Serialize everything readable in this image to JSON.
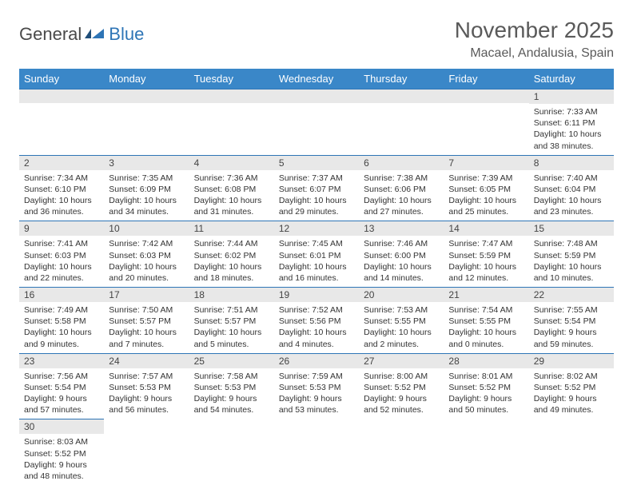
{
  "logo": {
    "general": "General",
    "blue": "Blue"
  },
  "title": "November 2025",
  "location": "Macael, Andalusia, Spain",
  "colors": {
    "header_bg": "#3a87c8",
    "header_text": "#ffffff",
    "daynum_bg": "#e8e8e8",
    "border_top": "#2e75b6",
    "text": "#333333",
    "title_color": "#5a5a5a",
    "logo_blue": "#2e75b6",
    "logo_gray": "#4a4a4a"
  },
  "weekdays": [
    "Sunday",
    "Monday",
    "Tuesday",
    "Wednesday",
    "Thursday",
    "Friday",
    "Saturday"
  ],
  "weeks": [
    [
      {
        "n": null
      },
      {
        "n": null
      },
      {
        "n": null
      },
      {
        "n": null
      },
      {
        "n": null
      },
      {
        "n": null
      },
      {
        "n": "1",
        "sr": "Sunrise: 7:33 AM",
        "ss": "Sunset: 6:11 PM",
        "dl": "Daylight: 10 hours and 38 minutes."
      }
    ],
    [
      {
        "n": "2",
        "sr": "Sunrise: 7:34 AM",
        "ss": "Sunset: 6:10 PM",
        "dl": "Daylight: 10 hours and 36 minutes."
      },
      {
        "n": "3",
        "sr": "Sunrise: 7:35 AM",
        "ss": "Sunset: 6:09 PM",
        "dl": "Daylight: 10 hours and 34 minutes."
      },
      {
        "n": "4",
        "sr": "Sunrise: 7:36 AM",
        "ss": "Sunset: 6:08 PM",
        "dl": "Daylight: 10 hours and 31 minutes."
      },
      {
        "n": "5",
        "sr": "Sunrise: 7:37 AM",
        "ss": "Sunset: 6:07 PM",
        "dl": "Daylight: 10 hours and 29 minutes."
      },
      {
        "n": "6",
        "sr": "Sunrise: 7:38 AM",
        "ss": "Sunset: 6:06 PM",
        "dl": "Daylight: 10 hours and 27 minutes."
      },
      {
        "n": "7",
        "sr": "Sunrise: 7:39 AM",
        "ss": "Sunset: 6:05 PM",
        "dl": "Daylight: 10 hours and 25 minutes."
      },
      {
        "n": "8",
        "sr": "Sunrise: 7:40 AM",
        "ss": "Sunset: 6:04 PM",
        "dl": "Daylight: 10 hours and 23 minutes."
      }
    ],
    [
      {
        "n": "9",
        "sr": "Sunrise: 7:41 AM",
        "ss": "Sunset: 6:03 PM",
        "dl": "Daylight: 10 hours and 22 minutes."
      },
      {
        "n": "10",
        "sr": "Sunrise: 7:42 AM",
        "ss": "Sunset: 6:03 PM",
        "dl": "Daylight: 10 hours and 20 minutes."
      },
      {
        "n": "11",
        "sr": "Sunrise: 7:44 AM",
        "ss": "Sunset: 6:02 PM",
        "dl": "Daylight: 10 hours and 18 minutes."
      },
      {
        "n": "12",
        "sr": "Sunrise: 7:45 AM",
        "ss": "Sunset: 6:01 PM",
        "dl": "Daylight: 10 hours and 16 minutes."
      },
      {
        "n": "13",
        "sr": "Sunrise: 7:46 AM",
        "ss": "Sunset: 6:00 PM",
        "dl": "Daylight: 10 hours and 14 minutes."
      },
      {
        "n": "14",
        "sr": "Sunrise: 7:47 AM",
        "ss": "Sunset: 5:59 PM",
        "dl": "Daylight: 10 hours and 12 minutes."
      },
      {
        "n": "15",
        "sr": "Sunrise: 7:48 AM",
        "ss": "Sunset: 5:59 PM",
        "dl": "Daylight: 10 hours and 10 minutes."
      }
    ],
    [
      {
        "n": "16",
        "sr": "Sunrise: 7:49 AM",
        "ss": "Sunset: 5:58 PM",
        "dl": "Daylight: 10 hours and 9 minutes."
      },
      {
        "n": "17",
        "sr": "Sunrise: 7:50 AM",
        "ss": "Sunset: 5:57 PM",
        "dl": "Daylight: 10 hours and 7 minutes."
      },
      {
        "n": "18",
        "sr": "Sunrise: 7:51 AM",
        "ss": "Sunset: 5:57 PM",
        "dl": "Daylight: 10 hours and 5 minutes."
      },
      {
        "n": "19",
        "sr": "Sunrise: 7:52 AM",
        "ss": "Sunset: 5:56 PM",
        "dl": "Daylight: 10 hours and 4 minutes."
      },
      {
        "n": "20",
        "sr": "Sunrise: 7:53 AM",
        "ss": "Sunset: 5:55 PM",
        "dl": "Daylight: 10 hours and 2 minutes."
      },
      {
        "n": "21",
        "sr": "Sunrise: 7:54 AM",
        "ss": "Sunset: 5:55 PM",
        "dl": "Daylight: 10 hours and 0 minutes."
      },
      {
        "n": "22",
        "sr": "Sunrise: 7:55 AM",
        "ss": "Sunset: 5:54 PM",
        "dl": "Daylight: 9 hours and 59 minutes."
      }
    ],
    [
      {
        "n": "23",
        "sr": "Sunrise: 7:56 AM",
        "ss": "Sunset: 5:54 PM",
        "dl": "Daylight: 9 hours and 57 minutes."
      },
      {
        "n": "24",
        "sr": "Sunrise: 7:57 AM",
        "ss": "Sunset: 5:53 PM",
        "dl": "Daylight: 9 hours and 56 minutes."
      },
      {
        "n": "25",
        "sr": "Sunrise: 7:58 AM",
        "ss": "Sunset: 5:53 PM",
        "dl": "Daylight: 9 hours and 54 minutes."
      },
      {
        "n": "26",
        "sr": "Sunrise: 7:59 AM",
        "ss": "Sunset: 5:53 PM",
        "dl": "Daylight: 9 hours and 53 minutes."
      },
      {
        "n": "27",
        "sr": "Sunrise: 8:00 AM",
        "ss": "Sunset: 5:52 PM",
        "dl": "Daylight: 9 hours and 52 minutes."
      },
      {
        "n": "28",
        "sr": "Sunrise: 8:01 AM",
        "ss": "Sunset: 5:52 PM",
        "dl": "Daylight: 9 hours and 50 minutes."
      },
      {
        "n": "29",
        "sr": "Sunrise: 8:02 AM",
        "ss": "Sunset: 5:52 PM",
        "dl": "Daylight: 9 hours and 49 minutes."
      }
    ],
    [
      {
        "n": "30",
        "sr": "Sunrise: 8:03 AM",
        "ss": "Sunset: 5:52 PM",
        "dl": "Daylight: 9 hours and 48 minutes."
      },
      {
        "n": null
      },
      {
        "n": null
      },
      {
        "n": null
      },
      {
        "n": null
      },
      {
        "n": null
      },
      {
        "n": null
      }
    ]
  ]
}
